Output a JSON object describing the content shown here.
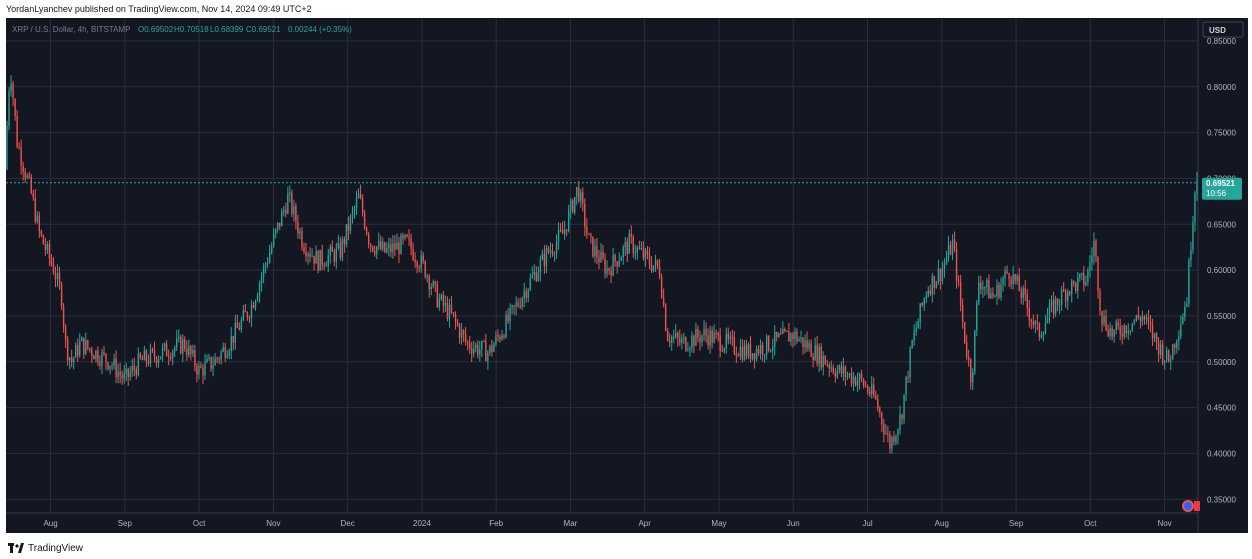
{
  "header": {
    "publisher_line": "YordanLyanchev published on TradingView.com, Nov 14, 2024 09:49 UTC+2"
  },
  "legend": {
    "symbol": "XRP / U.S. Dollar, 4h, BITSTAMP",
    "open": "O0.69502",
    "high": "H0.70518",
    "low": "L0.68399",
    "close": "C0.69521",
    "change": "0.00244 (+0.35%)"
  },
  "currency_button": "USD",
  "last_price": {
    "price": "0.69521",
    "countdown": "10:56",
    "color": "#26a69a"
  },
  "footer": {
    "brand": "TradingView"
  },
  "colors": {
    "background": "#131722",
    "up": "#26a69a",
    "down": "#ef5350",
    "grid": "#2a2e39"
  },
  "chart_data": {
    "type": "candlestick",
    "interval": "4h",
    "ylim": [
      0.335,
      0.875
    ],
    "y_ticks": [
      "0.85000",
      "0.80000",
      "0.75000",
      "0.70000",
      "0.65000",
      "0.60000",
      "0.55000",
      "0.50000",
      "0.45000",
      "0.40000",
      "0.35000"
    ],
    "x_ticks": [
      "Aug",
      "Sep",
      "Oct",
      "Nov",
      "Dec",
      "2024",
      "Feb",
      "Mar",
      "Apr",
      "May",
      "Jun",
      "Jul",
      "Aug",
      "Sep",
      "Oct",
      "Nov"
    ],
    "x_tick_pos": [
      1.5,
      2.5,
      3.5,
      4.5,
      5.5,
      6.5,
      7.5,
      8.5,
      9.5,
      10.5,
      11.5,
      12.5,
      13.5,
      14.5,
      15.5,
      16.5
    ],
    "x_range": [
      0.9,
      16.95
    ],
    "trend": [
      [
        0.9,
        0.71
      ],
      [
        0.92,
        0.78
      ],
      [
        0.96,
        0.82
      ],
      [
        1.05,
        0.74
      ],
      [
        1.15,
        0.71
      ],
      [
        1.25,
        0.68
      ],
      [
        1.35,
        0.64
      ],
      [
        1.45,
        0.62
      ],
      [
        1.55,
        0.6
      ],
      [
        1.65,
        0.57
      ],
      [
        1.7,
        0.52
      ],
      [
        1.78,
        0.5
      ],
      [
        1.9,
        0.52
      ],
      [
        2.1,
        0.51
      ],
      [
        2.3,
        0.5
      ],
      [
        2.5,
        0.48
      ],
      [
        2.7,
        0.5
      ],
      [
        3.0,
        0.51
      ],
      [
        3.3,
        0.52
      ],
      [
        3.5,
        0.49
      ],
      [
        3.7,
        0.5
      ],
      [
        3.9,
        0.52
      ],
      [
        4.2,
        0.56
      ],
      [
        4.45,
        0.62
      ],
      [
        4.7,
        0.68
      ],
      [
        4.9,
        0.63
      ],
      [
        5.1,
        0.61
      ],
      [
        5.4,
        0.62
      ],
      [
        5.65,
        0.68
      ],
      [
        5.8,
        0.63
      ],
      [
        6.0,
        0.62
      ],
      [
        6.3,
        0.63
      ],
      [
        6.55,
        0.6
      ],
      [
        6.7,
        0.57
      ],
      [
        6.9,
        0.55
      ],
      [
        7.1,
        0.52
      ],
      [
        7.4,
        0.51
      ],
      [
        7.7,
        0.55
      ],
      [
        7.9,
        0.58
      ],
      [
        8.2,
        0.62
      ],
      [
        8.4,
        0.64
      ],
      [
        8.6,
        0.69
      ],
      [
        8.75,
        0.63
      ],
      [
        9.0,
        0.6
      ],
      [
        9.3,
        0.63
      ],
      [
        9.55,
        0.61
      ],
      [
        9.7,
        0.6
      ],
      [
        9.8,
        0.53
      ],
      [
        10.0,
        0.52
      ],
      [
        10.3,
        0.53
      ],
      [
        10.6,
        0.52
      ],
      [
        10.9,
        0.51
      ],
      [
        11.2,
        0.52
      ],
      [
        11.5,
        0.53
      ],
      [
        11.8,
        0.51
      ],
      [
        12.1,
        0.49
      ],
      [
        12.4,
        0.48
      ],
      [
        12.6,
        0.46
      ],
      [
        12.8,
        0.41
      ],
      [
        12.95,
        0.44
      ],
      [
        13.1,
        0.52
      ],
      [
        13.3,
        0.58
      ],
      [
        13.5,
        0.6
      ],
      [
        13.65,
        0.63
      ],
      [
        13.8,
        0.53
      ],
      [
        13.9,
        0.48
      ],
      [
        14.0,
        0.59
      ],
      [
        14.2,
        0.57
      ],
      [
        14.4,
        0.6
      ],
      [
        14.6,
        0.57
      ],
      [
        14.8,
        0.53
      ],
      [
        15.0,
        0.56
      ],
      [
        15.2,
        0.58
      ],
      [
        15.45,
        0.59
      ],
      [
        15.55,
        0.63
      ],
      [
        15.65,
        0.55
      ],
      [
        15.8,
        0.53
      ],
      [
        16.0,
        0.54
      ],
      [
        16.2,
        0.55
      ],
      [
        16.4,
        0.52
      ],
      [
        16.55,
        0.5
      ],
      [
        16.7,
        0.54
      ],
      [
        16.8,
        0.57
      ],
      [
        16.88,
        0.66
      ],
      [
        16.93,
        0.71
      ],
      [
        16.95,
        0.695
      ]
    ]
  }
}
